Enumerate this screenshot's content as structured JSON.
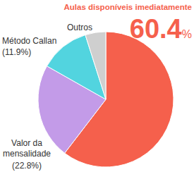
{
  "chart_data": {
    "type": "pie",
    "categories": [
      "Aulas disponíveis imediatamente",
      "Valor da mensalidade",
      "Método Callan",
      "Outros"
    ],
    "values": [
      60.4,
      22.8,
      11.9,
      4.9
    ],
    "value_labels": [
      "60.4%",
      "(22.8%)",
      "(11.9%)",
      null
    ],
    "colors": [
      "#f5604c",
      "#c39be8",
      "#52d4df",
      "#cfcfcf"
    ],
    "data_labels": true
  }
}
